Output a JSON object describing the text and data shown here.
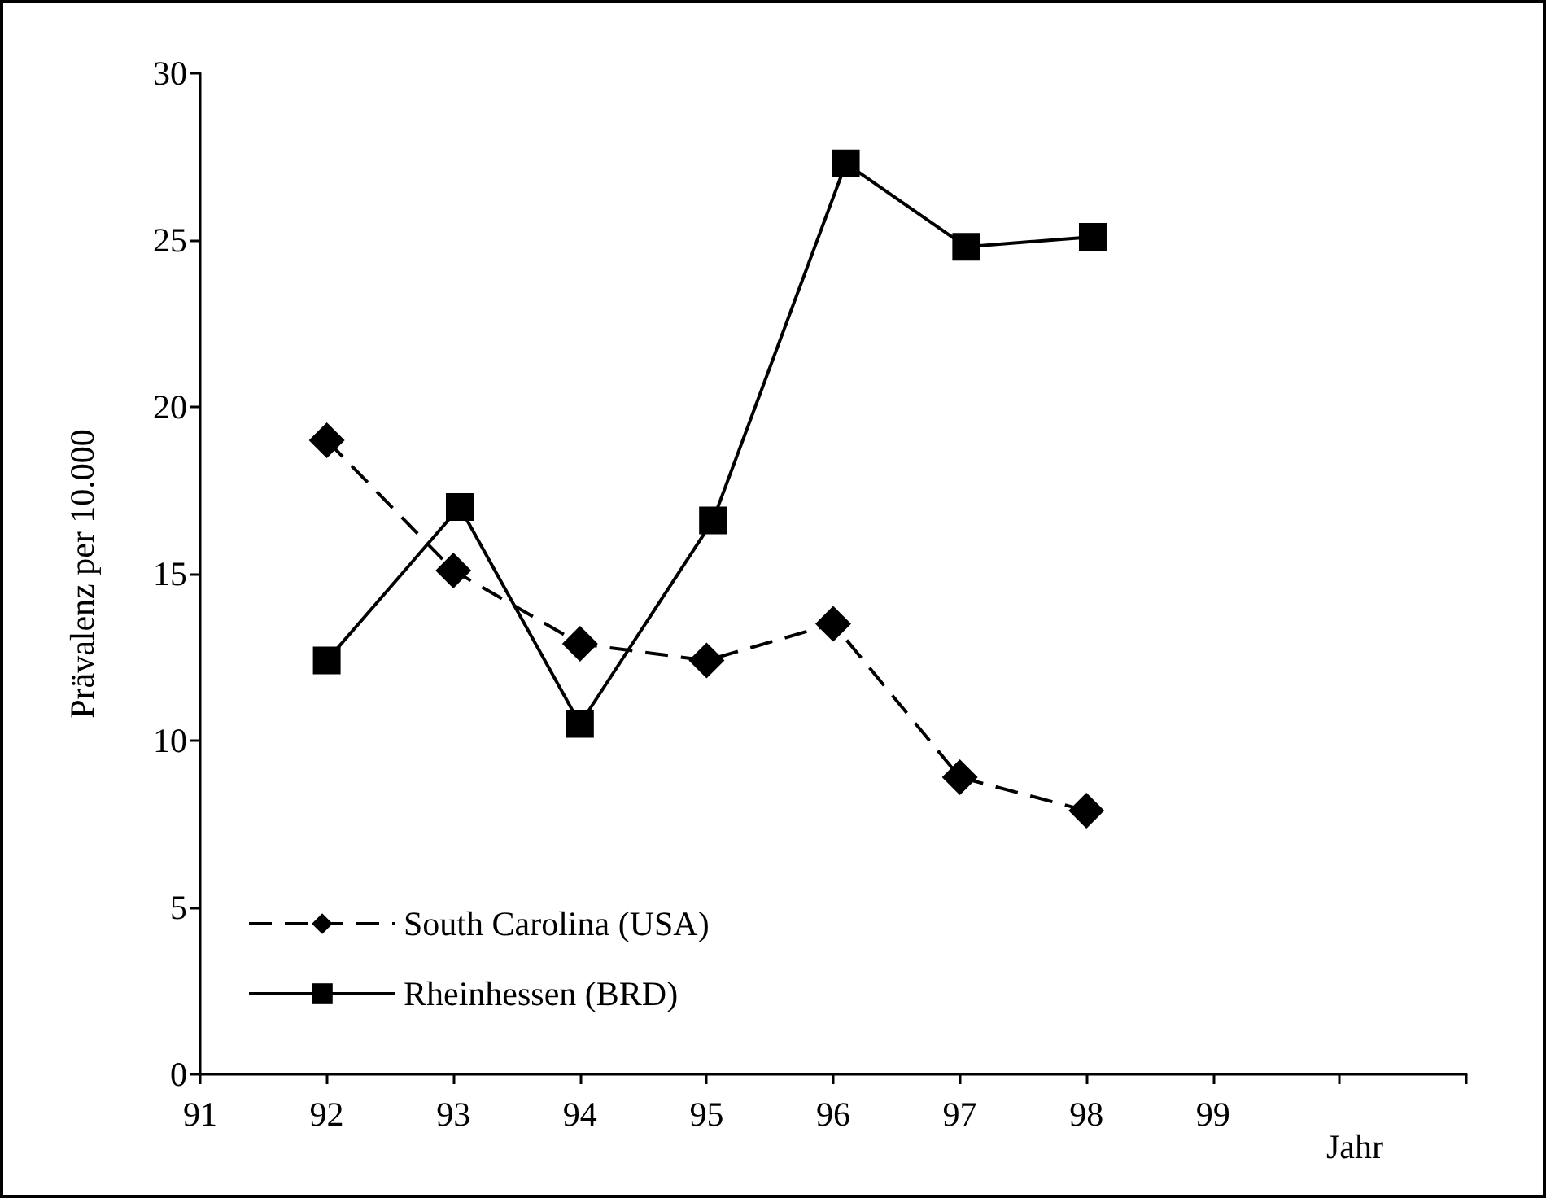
{
  "chart_data": {
    "type": "line",
    "xlabel": "Jahr",
    "ylabel": "Prävalenz per 10.000",
    "xlim": [
      91,
      101
    ],
    "xticks": [
      91,
      92,
      93,
      94,
      95,
      96,
      97,
      98,
      99,
      {
        "value": 100,
        "label": null
      },
      {
        "value": 101,
        "label": null
      }
    ],
    "ylim": [
      0,
      30
    ],
    "yticks": [
      0,
      5,
      10,
      15,
      20,
      25,
      30
    ],
    "grid": false,
    "legend": "bottom left",
    "series": [
      {
        "name": "South Carolina (USA)",
        "color": "#000000",
        "marker": "diamond",
        "line_style": "dashed",
        "x": [
          92,
          93,
          94,
          95,
          96,
          97,
          98
        ],
        "values": [
          19.0,
          15.1,
          12.9,
          12.4,
          13.5,
          8.9,
          7.9
        ]
      },
      {
        "name": "Rheinhessen (BRD)",
        "color": "#000000",
        "marker": "square",
        "line_style": "solid",
        "x": [
          92,
          93.05,
          94,
          95.05,
          96.1,
          97.05,
          98.05
        ],
        "values": [
          12.4,
          17.0,
          10.5,
          16.6,
          27.3,
          24.8,
          25.1
        ]
      }
    ]
  }
}
